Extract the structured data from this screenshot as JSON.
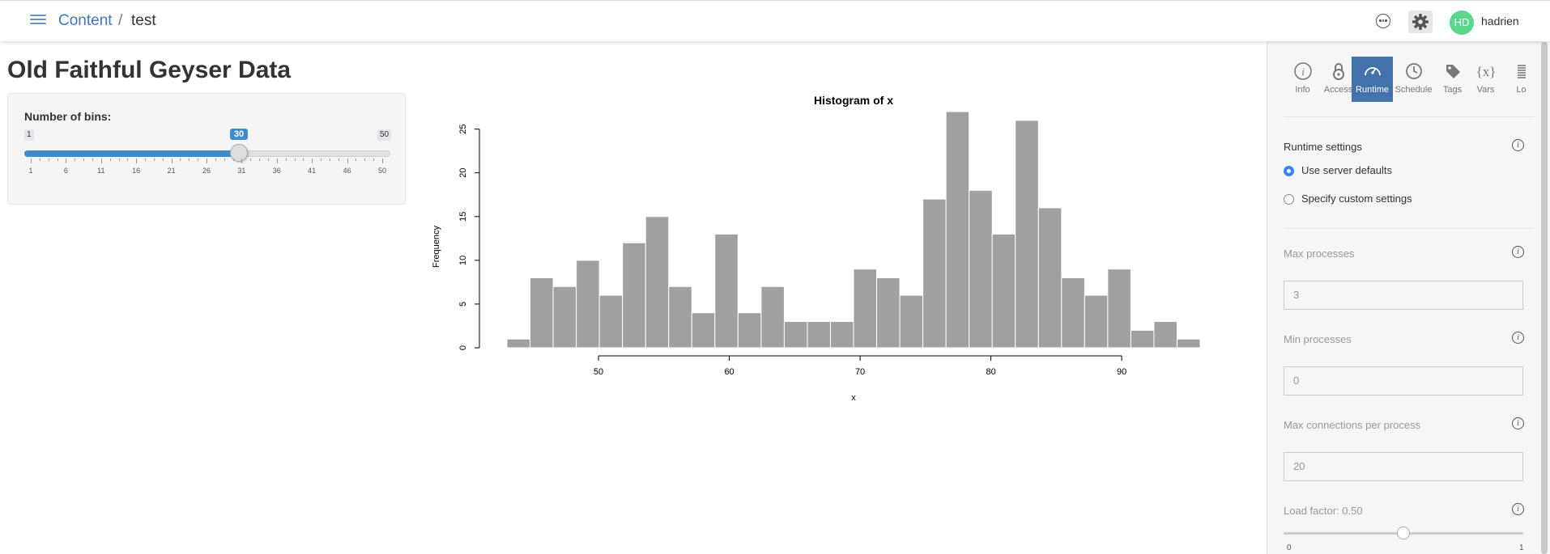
{
  "topbar": {
    "menu_icon": "hamburger-menu-icon",
    "breadcrumb": {
      "root": "Content",
      "separator": "/",
      "current": "test"
    },
    "more_icon": "ellipsis-circle-icon",
    "settings_icon": "gear-icon",
    "user": {
      "initials": "HD",
      "name": "hadrien",
      "avatar_color": "#5cd68b"
    }
  },
  "app": {
    "title": "Old Faithful Geyser Data",
    "slider": {
      "label": "Number of bins:",
      "min": "1",
      "max": "50",
      "value": "30",
      "tick_labels": [
        "1",
        "6",
        "11",
        "16",
        "21",
        "26",
        "31",
        "36",
        "41",
        "46",
        "50"
      ],
      "accent": "#428bca"
    }
  },
  "chart_data": {
    "type": "bar",
    "title": "Histogram of x",
    "xlabel": "x",
    "ylabel": "Frequency",
    "bin_start": 43,
    "bin_width": 1.7667,
    "values": [
      1,
      8,
      7,
      10,
      6,
      12,
      15,
      7,
      4,
      13,
      4,
      7,
      3,
      3,
      3,
      9,
      8,
      6,
      17,
      27,
      18,
      13,
      26,
      16,
      8,
      6,
      9,
      2,
      3,
      1
    ],
    "xticks": [
      "50",
      "60",
      "70",
      "80",
      "90"
    ],
    "yticks": [
      "0",
      "5",
      "10",
      "15",
      "20",
      "25"
    ],
    "xlim": [
      43,
      96
    ],
    "ylim": [
      0,
      27
    ],
    "bar_color": "#a0a0a0",
    "grid": false
  },
  "panel": {
    "tabs": [
      {
        "label": "Info",
        "icon": "info-icon",
        "active": false
      },
      {
        "label": "Access",
        "icon": "padlock-icon",
        "active": false
      },
      {
        "label": "Runtime",
        "icon": "speedometer-icon",
        "active": true
      },
      {
        "label": "Schedule",
        "icon": "clock-icon",
        "active": false
      },
      {
        "label": "Tags",
        "icon": "tag-icon",
        "active": false
      },
      {
        "label": "Vars",
        "icon": "variable-icon",
        "active": false
      },
      {
        "label": "Lo",
        "icon": "logs-icon",
        "active": false
      }
    ],
    "runtime_title": "Runtime settings",
    "options": [
      "Use server defaults",
      "Specify custom settings"
    ],
    "selected_option": "Use server defaults",
    "max_processes": {
      "label": "Max processes",
      "value": "3"
    },
    "min_processes": {
      "label": "Min processes",
      "value": "0"
    },
    "max_connections": {
      "label": "Max connections per process",
      "value": "20"
    },
    "load_factor": {
      "label": "Load factor: 0.50",
      "value": 0.5,
      "min": "0",
      "max": "1"
    },
    "accent": "#4372ad"
  }
}
